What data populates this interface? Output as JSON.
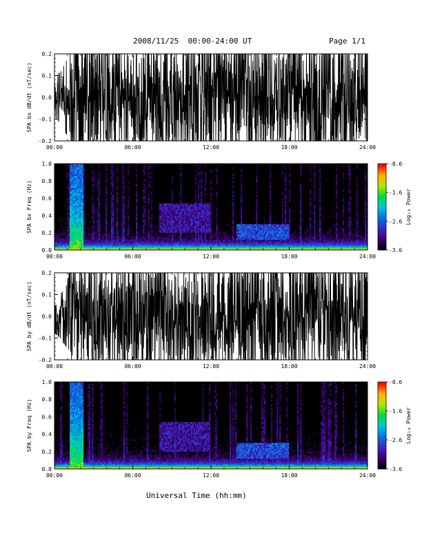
{
  "header": {
    "title": "2008/11/25  00:00-24:00 UT",
    "page": "Page 1/1"
  },
  "xlabel": "Universal Time (hh:mm)",
  "time_ticks": [
    "00:00",
    "06:00",
    "12:00",
    "18:00",
    "24:00"
  ],
  "colorbar": {
    "label": "Log₁₀ Power",
    "ticks": [
      "-0.6",
      "-1.6",
      "-2.6",
      "-3.6"
    ],
    "range": [
      -3.6,
      -0.6
    ]
  },
  "chart_data": [
    {
      "type": "line",
      "ylabel": "SPA bx dB/dt (nT/sec)",
      "xlim": [
        "00:00",
        "24:00"
      ],
      "ylim": [
        -0.2,
        0.2
      ],
      "yticks": [
        "0.2",
        "0.1",
        "0.0",
        "-0.1",
        "-0.2"
      ],
      "yvalues": [
        0.2,
        0.1,
        0.0,
        -0.1,
        -0.2
      ],
      "envelope_hours": [
        0,
        0.5,
        1,
        1.25,
        1.5,
        2,
        3,
        4,
        5,
        6,
        7,
        8,
        9,
        10,
        11,
        12,
        13,
        14,
        15,
        16,
        17,
        18,
        19,
        20,
        21,
        22,
        23,
        24
      ],
      "envelope_amplitude": [
        0.06,
        0.08,
        0.12,
        0.2,
        0.2,
        0.2,
        0.2,
        0.2,
        0.14,
        0.15,
        0.16,
        0.17,
        0.2,
        0.2,
        0.2,
        0.2,
        0.2,
        0.2,
        0.2,
        0.2,
        0.2,
        0.2,
        0.2,
        0.2,
        0.2,
        0.2,
        0.2,
        0.2
      ]
    },
    {
      "type": "heatmap",
      "ylabel": "SPA bx Freq (Hz)",
      "xlim": [
        "00:00",
        "24:00"
      ],
      "ylim": [
        0.0,
        1.0
      ],
      "yticks": [
        "1.0",
        "0.8",
        "0.6",
        "0.4",
        "0.2",
        "0.0"
      ],
      "yvalues": [
        1.0,
        0.8,
        0.6,
        0.4,
        0.2,
        0.0
      ],
      "zlabel": "Log₁₀ Power",
      "zlim": [
        -3.6,
        -0.6
      ]
    },
    {
      "type": "line",
      "ylabel": "SPA by dB/dt (nT/sec)",
      "xlim": [
        "00:00",
        "24:00"
      ],
      "ylim": [
        -0.2,
        0.2
      ],
      "yticks": [
        "0.2",
        "0.1",
        "0.0",
        "-0.1",
        "-0.2"
      ],
      "yvalues": [
        0.2,
        0.1,
        0.0,
        -0.1,
        -0.2
      ],
      "envelope_hours": [
        0,
        0.5,
        1,
        1.25,
        1.5,
        2,
        3,
        4,
        5,
        6,
        7,
        8,
        9,
        10,
        11,
        12,
        13,
        14,
        15,
        16,
        17,
        18,
        19,
        20,
        21,
        22,
        23,
        24
      ],
      "envelope_amplitude": [
        0.05,
        0.07,
        0.1,
        0.2,
        0.2,
        0.2,
        0.2,
        0.2,
        0.2,
        0.2,
        0.2,
        0.2,
        0.2,
        0.2,
        0.2,
        0.2,
        0.2,
        0.2,
        0.2,
        0.2,
        0.2,
        0.2,
        0.2,
        0.2,
        0.2,
        0.2,
        0.2,
        0.2
      ]
    },
    {
      "type": "heatmap",
      "ylabel": "SPA by Freq (Hz)",
      "xlim": [
        "00:00",
        "24:00"
      ],
      "ylim": [
        0.0,
        1.0
      ],
      "yticks": [
        "1.0",
        "0.8",
        "0.6",
        "0.4",
        "0.2",
        "0.0"
      ],
      "yvalues": [
        1.0,
        0.8,
        0.6,
        0.4,
        0.2,
        0.0
      ],
      "zlabel": "Log₁₀ Power",
      "zlim": [
        -3.6,
        -0.6
      ]
    }
  ]
}
